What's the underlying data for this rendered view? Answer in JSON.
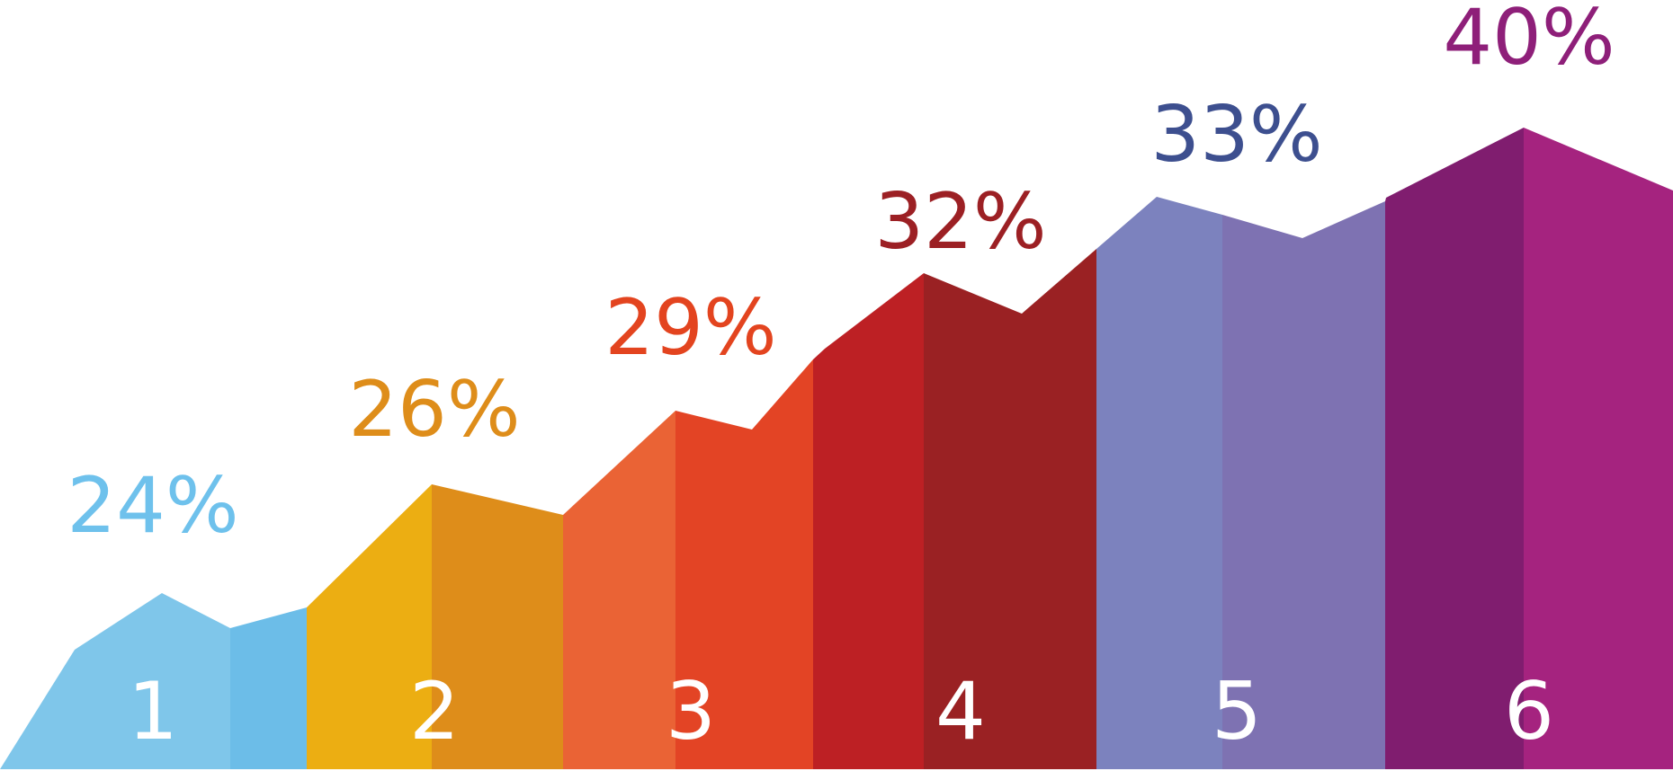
{
  "chart_data": {
    "type": "area",
    "title": "",
    "xlabel": "",
    "ylabel": "",
    "categories": [
      "1",
      "2",
      "3",
      "4",
      "5",
      "6"
    ],
    "values": [
      24,
      26,
      29,
      32,
      33,
      40
    ],
    "value_labels": [
      "24%",
      "26%",
      "29%",
      "32%",
      "33%",
      "40%"
    ],
    "unit": "%",
    "grid": false,
    "legend": "none",
    "colors": [
      {
        "light": "#7FC6EA",
        "dark": "#6CBDE8",
        "label": "#6EC1EC"
      },
      {
        "light": "#ECAE12",
        "dark": "#DE8D1A",
        "label": "#DE8D1A"
      },
      {
        "light": "#EA6335",
        "dark": "#E34425",
        "label": "#E3441F"
      },
      {
        "light": "#BD2024",
        "dark": "#9A2123",
        "label": "#9C2024"
      },
      {
        "light": "#7C82BE",
        "dark": "#7E72B2",
        "label": "#3D4F8F"
      },
      {
        "light": "#801D6F",
        "dark": "#A5237F",
        "label": "#8E1F79"
      }
    ]
  }
}
